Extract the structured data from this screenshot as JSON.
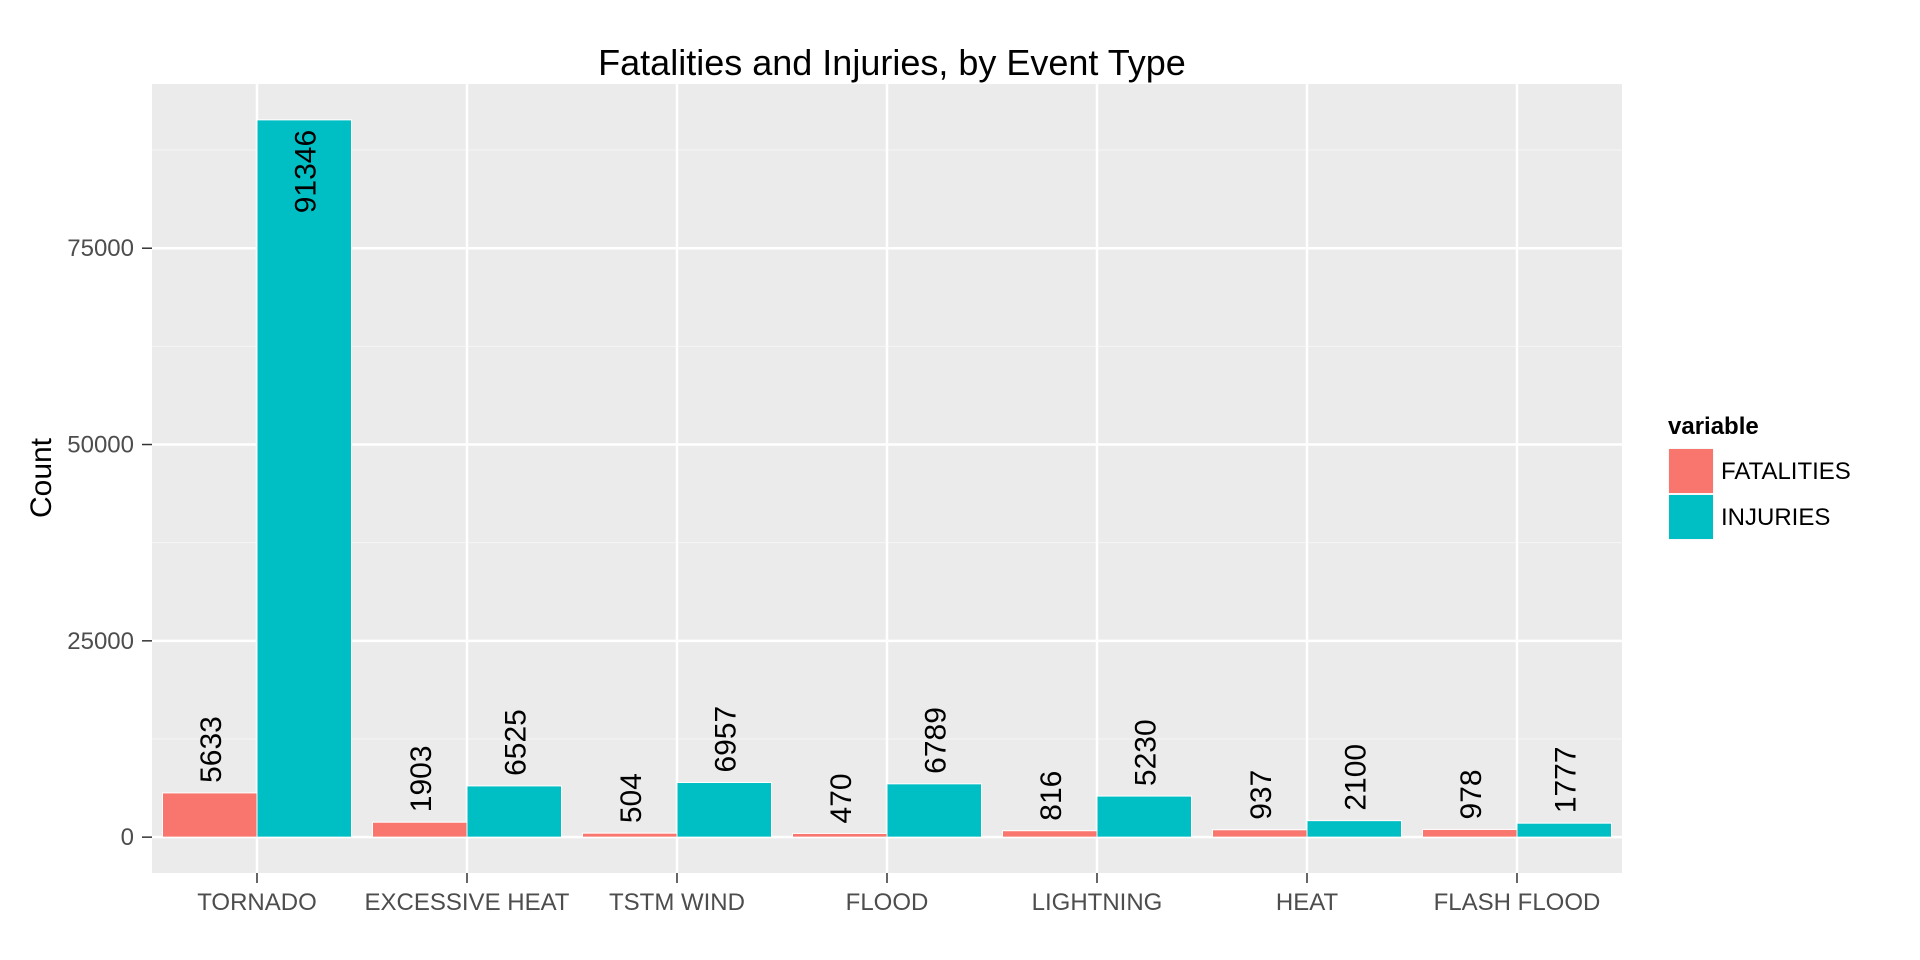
{
  "chart_data": {
    "type": "bar",
    "title": "Fatalities and Injuries, by Event Type",
    "xlabel": "",
    "ylabel": "Count",
    "categories": [
      "TORNADO",
      "EXCESSIVE HEAT",
      "TSTM WIND",
      "FLOOD",
      "LIGHTNING",
      "HEAT",
      "FLASH FLOOD"
    ],
    "series": [
      {
        "name": "FATALITIES",
        "color": "#F8766D",
        "values": [
          5633,
          1903,
          504,
          470,
          816,
          937,
          978
        ]
      },
      {
        "name": "INJURIES",
        "color": "#00BFC4",
        "values": [
          91346,
          6525,
          6957,
          6789,
          5230,
          2100,
          1777
        ]
      }
    ],
    "ylim": [
      -4567,
      95913
    ],
    "yticks": [
      0,
      25000,
      50000,
      75000
    ],
    "ytick_labels": [
      "0",
      "25000",
      "50000",
      "75000"
    ],
    "grid": true,
    "legend": {
      "title": "variable",
      "placement": "right"
    },
    "panel_background": "#EBEBEB"
  }
}
